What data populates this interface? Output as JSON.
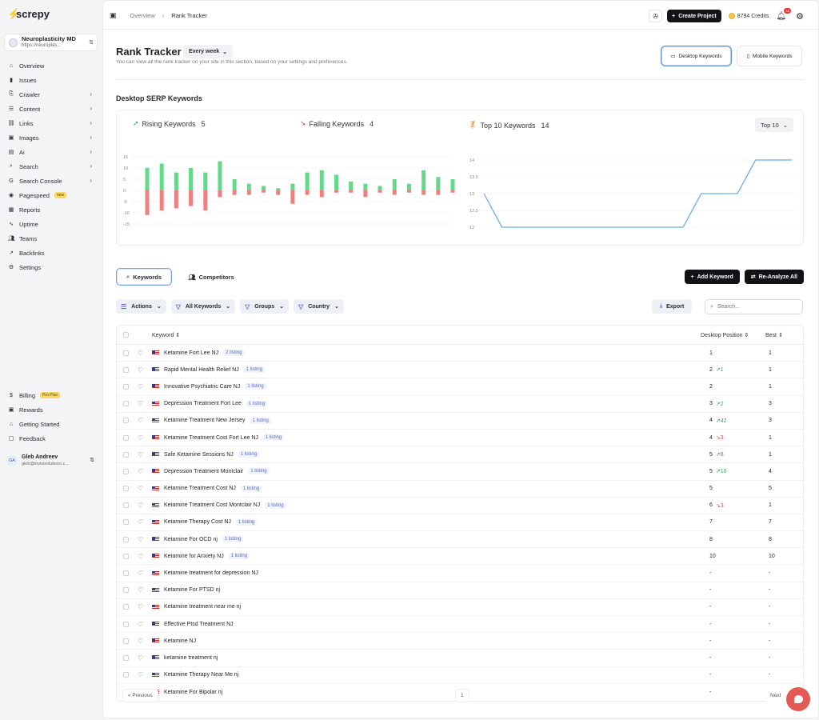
{
  "brand": {
    "name": "screpy",
    "accent": "#e94b4b"
  },
  "project": {
    "name": "Neuroplasticity MD",
    "url": "https://neuroplas..."
  },
  "sidebar": {
    "items": [
      {
        "label": "Overview",
        "icon": "home-icon"
      },
      {
        "label": "Issues",
        "icon": "bar-chart-icon"
      },
      {
        "label": "Crawler",
        "icon": "crawler-icon",
        "chevron": true
      },
      {
        "label": "Content",
        "icon": "content-icon",
        "chevron": true
      },
      {
        "label": "Links",
        "icon": "link-icon",
        "chevron": true
      },
      {
        "label": "Images",
        "icon": "image-icon",
        "chevron": true
      },
      {
        "label": "Ai",
        "icon": "ai-icon",
        "chevron": true
      },
      {
        "label": "Search",
        "icon": "search-icon",
        "chevron": true
      },
      {
        "label": "Search Console",
        "icon": "google-icon",
        "chevron": true
      },
      {
        "label": "Pagespeed",
        "icon": "speed-icon",
        "badge": "new"
      },
      {
        "label": "Reports",
        "icon": "report-icon"
      },
      {
        "label": "Uptime",
        "icon": "pulse-icon"
      },
      {
        "label": "Teams",
        "icon": "team-icon"
      },
      {
        "label": "Backlinks",
        "icon": "backlink-icon"
      },
      {
        "label": "Settings",
        "icon": "gear-icon"
      }
    ],
    "bottom": [
      {
        "label": "Billing",
        "icon": "dollar-icon",
        "badge": "Pro Plus"
      },
      {
        "label": "Rewards",
        "icon": "gift-icon"
      },
      {
        "label": "Getting Started",
        "icon": "cap-icon"
      },
      {
        "label": "Feedback",
        "icon": "feedback-icon"
      }
    ]
  },
  "user": {
    "initials": "GA",
    "name": "Gleb Andreev",
    "email": "gleb@invisisolutions.c..."
  },
  "topbar": {
    "crumbs": [
      "Overview",
      "Rank Tracker"
    ],
    "create_label": "Create Project",
    "credits": "8794 Credits",
    "notifications": "11"
  },
  "page": {
    "title": "Rank Tracker",
    "frequency": "Every week",
    "subtitle": "You can view all the rank tracker on your site in this section, based on your settings and preferences.",
    "desktop_btn": "Desktop Keywords",
    "mobile_btn": "Mobile Keywords",
    "section_title": "Desktop SERP Keywords"
  },
  "kpis": {
    "rising_label": "Rising Keywords",
    "rising_value": "5",
    "falling_label": "Falling Keywords",
    "falling_value": "4",
    "top10_label": "Top 10 Keywords",
    "top10_value": "14",
    "top10_select": "Top 10"
  },
  "chart_data": [
    {
      "type": "bar",
      "yticks": [
        "15",
        "10",
        "5",
        "0",
        "-5",
        "-10",
        "-15"
      ],
      "ylim": [
        -15,
        15
      ],
      "colors": {
        "rising": "#65d88a",
        "falling": "#f08080"
      },
      "series": [
        {
          "values": [
            10,
            12,
            8,
            10,
            8,
            13,
            5,
            3,
            2,
            1,
            3,
            8,
            9,
            7,
            4,
            3,
            2,
            5,
            3,
            9,
            6,
            5
          ]
        },
        {
          "values": [
            -11,
            -9,
            -8,
            -7,
            -9,
            -3,
            -2,
            -2,
            -1,
            -2,
            -6,
            -2,
            -3,
            -1,
            -1,
            -3,
            -1,
            -2,
            -1,
            -2,
            -2,
            -1
          ]
        }
      ]
    },
    {
      "type": "line",
      "yticks": [
        "14",
        "13.5",
        "13",
        "12.5",
        "12"
      ],
      "ylim": [
        12,
        14
      ],
      "color": "#6aaee0",
      "values": [
        13,
        12,
        12,
        12,
        12,
        12,
        12,
        12,
        12,
        12,
        12,
        12,
        13,
        13,
        13,
        14,
        14,
        14
      ]
    }
  ],
  "tabs": {
    "keywords": "Keywords",
    "competitors": "Competitors"
  },
  "buttons": {
    "add_keyword": "Add Keyword",
    "reanalyze": "Re-Analyze All",
    "export": "Export"
  },
  "filters": [
    "Actions",
    "All Keywords",
    "Groups",
    "Country"
  ],
  "search": {
    "placeholder": "Search..."
  },
  "table": {
    "headers": {
      "keyword": "Keyword",
      "position": "Desktop Position",
      "best": "Best"
    },
    "rows": [
      {
        "keyword": "Ketamine Fort Lee NJ",
        "listing": "2 listing",
        "pos": "1",
        "change": "",
        "dir": "",
        "best": "1"
      },
      {
        "keyword": "Rapid Mental Health Relief NJ",
        "listing": "1 listing",
        "pos": "2",
        "change": "1",
        "dir": "up",
        "best": "1"
      },
      {
        "keyword": "Innovative Psychiatric Care NJ",
        "listing": "1 listing",
        "pos": "2",
        "change": "",
        "dir": "",
        "best": "1"
      },
      {
        "keyword": "Depression Treatment Fort Lee",
        "listing": "1 listing",
        "pos": "3",
        "change": "2",
        "dir": "up",
        "best": "3"
      },
      {
        "keyword": "Ketamine Treatment New Jersey",
        "listing": "1 listing",
        "pos": "4",
        "change": "42",
        "dir": "up",
        "best": "3"
      },
      {
        "keyword": "Ketamine Treatment Cost Fort Lee NJ",
        "listing": "1 listing",
        "pos": "4",
        "change": "3",
        "dir": "down",
        "best": "1"
      },
      {
        "keyword": "Safe Ketamine Sessions NJ",
        "listing": "1 listing",
        "pos": "5",
        "change": "8",
        "dir": "up",
        "best": "1"
      },
      {
        "keyword": "Depression Treatment Montclair",
        "listing": "1 listing",
        "pos": "5",
        "change": "10",
        "dir": "up",
        "best": "4"
      },
      {
        "keyword": "Ketamine Treatment Cost NJ",
        "listing": "1 listing",
        "pos": "5",
        "change": "",
        "dir": "",
        "best": "5"
      },
      {
        "keyword": "Ketamine Treatment Cost Montclair NJ",
        "listing": "1 listing",
        "pos": "6",
        "change": "3",
        "dir": "down",
        "best": "1"
      },
      {
        "keyword": "Ketamine Therapy Cost NJ",
        "listing": "1 listing",
        "pos": "7",
        "change": "",
        "dir": "",
        "best": "7"
      },
      {
        "keyword": "Ketamine For OCD nj",
        "listing": "1 listing",
        "pos": "8",
        "change": "",
        "dir": "",
        "best": "8"
      },
      {
        "keyword": "Ketamine for Anxiety NJ",
        "listing": "1 listing",
        "pos": "10",
        "change": "",
        "dir": "",
        "best": "10"
      },
      {
        "keyword": "Ketamine treatment for depression NJ",
        "listing": "",
        "pos": "-",
        "change": "",
        "dir": "",
        "best": "-"
      },
      {
        "keyword": "Ketamine For PTSD nj",
        "listing": "",
        "pos": "-",
        "change": "",
        "dir": "",
        "best": "-"
      },
      {
        "keyword": "Ketamine treatment near me nj",
        "listing": "",
        "pos": "-",
        "change": "",
        "dir": "",
        "best": "-"
      },
      {
        "keyword": "Effective Ptsd Treatment NJ",
        "listing": "",
        "pos": "-",
        "change": "",
        "dir": "",
        "best": "-"
      },
      {
        "keyword": "Ketamine NJ",
        "listing": "",
        "pos": "-",
        "change": "",
        "dir": "",
        "best": "-"
      },
      {
        "keyword": "ketamine treatment nj",
        "listing": "",
        "pos": "-",
        "change": "",
        "dir": "",
        "best": "-"
      },
      {
        "keyword": "Ketamine Therapy Near Me nj",
        "listing": "",
        "pos": "-",
        "change": "",
        "dir": "",
        "best": "-"
      },
      {
        "keyword": "Ketamine For Bipolar nj",
        "listing": "",
        "pos": "-",
        "change": "",
        "dir": "",
        "best": "-"
      }
    ]
  },
  "pager": {
    "prev": "« Previous",
    "page": "1",
    "next": "Next"
  }
}
